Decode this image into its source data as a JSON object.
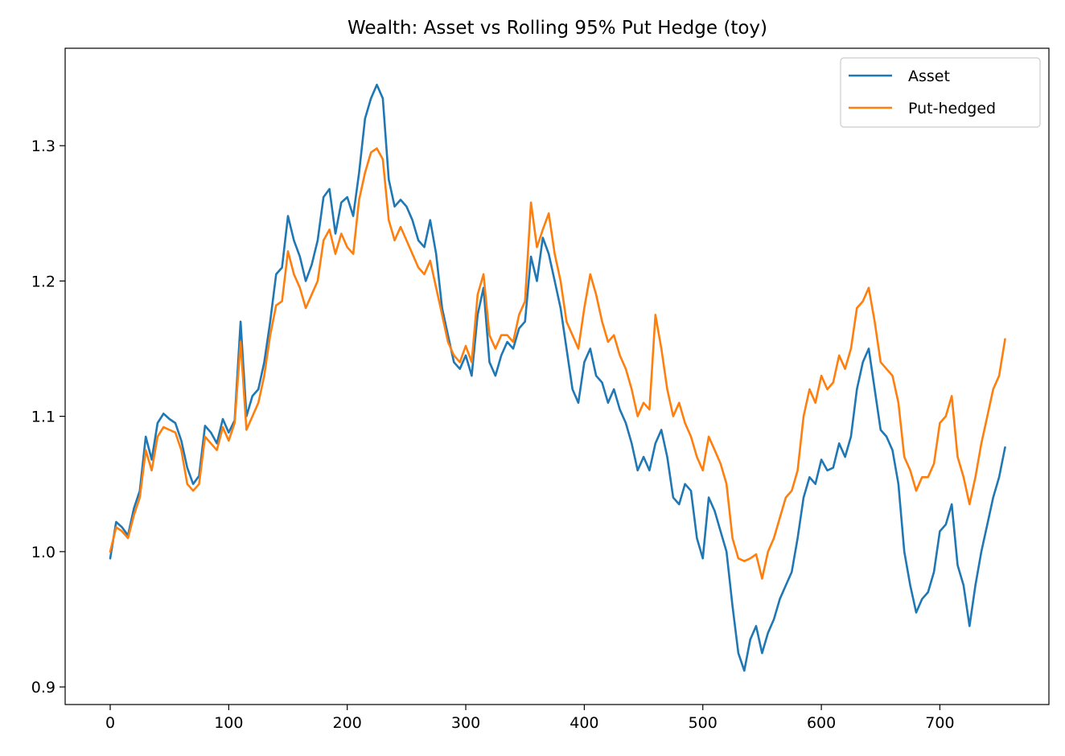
{
  "chart_data": {
    "type": "line",
    "title": "Wealth: Asset vs Rolling 95% Put Hedge (toy)",
    "xlabel": "",
    "ylabel": "",
    "xlim": [
      -38,
      792
    ],
    "ylim": [
      0.887,
      1.372
    ],
    "x_ticks": [
      0,
      100,
      200,
      300,
      400,
      500,
      600,
      700
    ],
    "x_tick_labels": [
      "0",
      "100",
      "200",
      "300",
      "400",
      "500",
      "600",
      "700"
    ],
    "y_ticks": [
      0.9,
      1.0,
      1.1,
      1.2,
      1.3
    ],
    "y_tick_labels": [
      "0.9",
      "1.0",
      "1.1",
      "1.2",
      "1.3"
    ],
    "grid": false,
    "legend_position": "top-right",
    "series": [
      {
        "name": "Asset",
        "color": "#1f77b4",
        "points": [
          [
            0,
            0.995
          ],
          [
            5,
            1.022
          ],
          [
            10,
            1.018
          ],
          [
            15,
            1.012
          ],
          [
            20,
            1.032
          ],
          [
            25,
            1.045
          ],
          [
            30,
            1.085
          ],
          [
            35,
            1.068
          ],
          [
            40,
            1.095
          ],
          [
            45,
            1.102
          ],
          [
            50,
            1.098
          ],
          [
            55,
            1.095
          ],
          [
            60,
            1.082
          ],
          [
            65,
            1.062
          ],
          [
            70,
            1.05
          ],
          [
            75,
            1.056
          ],
          [
            80,
            1.093
          ],
          [
            85,
            1.088
          ],
          [
            90,
            1.08
          ],
          [
            95,
            1.098
          ],
          [
            100,
            1.088
          ],
          [
            105,
            1.097
          ],
          [
            110,
            1.17
          ],
          [
            115,
            1.1
          ],
          [
            120,
            1.115
          ],
          [
            125,
            1.12
          ],
          [
            130,
            1.14
          ],
          [
            135,
            1.17
          ],
          [
            140,
            1.205
          ],
          [
            145,
            1.21
          ],
          [
            150,
            1.248
          ],
          [
            155,
            1.23
          ],
          [
            160,
            1.218
          ],
          [
            165,
            1.2
          ],
          [
            170,
            1.212
          ],
          [
            175,
            1.23
          ],
          [
            180,
            1.262
          ],
          [
            185,
            1.268
          ],
          [
            190,
            1.235
          ],
          [
            195,
            1.258
          ],
          [
            200,
            1.262
          ],
          [
            205,
            1.248
          ],
          [
            210,
            1.28
          ],
          [
            215,
            1.32
          ],
          [
            220,
            1.335
          ],
          [
            225,
            1.345
          ],
          [
            230,
            1.335
          ],
          [
            235,
            1.275
          ],
          [
            240,
            1.255
          ],
          [
            245,
            1.26
          ],
          [
            250,
            1.255
          ],
          [
            255,
            1.245
          ],
          [
            260,
            1.23
          ],
          [
            265,
            1.225
          ],
          [
            270,
            1.245
          ],
          [
            275,
            1.22
          ],
          [
            280,
            1.18
          ],
          [
            285,
            1.16
          ],
          [
            290,
            1.14
          ],
          [
            295,
            1.135
          ],
          [
            300,
            1.145
          ],
          [
            305,
            1.13
          ],
          [
            310,
            1.175
          ],
          [
            315,
            1.195
          ],
          [
            320,
            1.14
          ],
          [
            325,
            1.13
          ],
          [
            330,
            1.145
          ],
          [
            335,
            1.155
          ],
          [
            340,
            1.15
          ],
          [
            345,
            1.165
          ],
          [
            350,
            1.17
          ],
          [
            355,
            1.218
          ],
          [
            360,
            1.2
          ],
          [
            365,
            1.232
          ],
          [
            370,
            1.22
          ],
          [
            375,
            1.2
          ],
          [
            380,
            1.18
          ],
          [
            385,
            1.15
          ],
          [
            390,
            1.12
          ],
          [
            395,
            1.11
          ],
          [
            400,
            1.14
          ],
          [
            405,
            1.15
          ],
          [
            410,
            1.13
          ],
          [
            415,
            1.125
          ],
          [
            420,
            1.11
          ],
          [
            425,
            1.12
          ],
          [
            430,
            1.105
          ],
          [
            435,
            1.095
          ],
          [
            440,
            1.08
          ],
          [
            445,
            1.06
          ],
          [
            450,
            1.07
          ],
          [
            455,
            1.06
          ],
          [
            460,
            1.08
          ],
          [
            465,
            1.09
          ],
          [
            470,
            1.07
          ],
          [
            475,
            1.04
          ],
          [
            480,
            1.035
          ],
          [
            485,
            1.05
          ],
          [
            490,
            1.045
          ],
          [
            495,
            1.01
          ],
          [
            500,
            0.995
          ],
          [
            505,
            1.04
          ],
          [
            510,
            1.03
          ],
          [
            515,
            1.015
          ],
          [
            520,
            1.0
          ],
          [
            525,
            0.96
          ],
          [
            530,
            0.925
          ],
          [
            535,
            0.912
          ],
          [
            540,
            0.935
          ],
          [
            545,
            0.945
          ],
          [
            550,
            0.925
          ],
          [
            555,
            0.94
          ],
          [
            560,
            0.95
          ],
          [
            565,
            0.965
          ],
          [
            570,
            0.975
          ],
          [
            575,
            0.985
          ],
          [
            580,
            1.01
          ],
          [
            585,
            1.04
          ],
          [
            590,
            1.055
          ],
          [
            595,
            1.05
          ],
          [
            600,
            1.068
          ],
          [
            605,
            1.06
          ],
          [
            610,
            1.062
          ],
          [
            615,
            1.08
          ],
          [
            620,
            1.07
          ],
          [
            625,
            1.085
          ],
          [
            630,
            1.12
          ],
          [
            635,
            1.14
          ],
          [
            640,
            1.15
          ],
          [
            645,
            1.12
          ],
          [
            650,
            1.09
          ],
          [
            655,
            1.085
          ],
          [
            660,
            1.075
          ],
          [
            665,
            1.05
          ],
          [
            670,
            1.0
          ],
          [
            675,
            0.975
          ],
          [
            680,
            0.955
          ],
          [
            685,
            0.965
          ],
          [
            690,
            0.97
          ],
          [
            695,
            0.985
          ],
          [
            700,
            1.015
          ],
          [
            705,
            1.02
          ],
          [
            710,
            1.035
          ],
          [
            715,
            0.99
          ],
          [
            720,
            0.975
          ],
          [
            725,
            0.945
          ],
          [
            730,
            0.975
          ],
          [
            735,
            1.0
          ],
          [
            740,
            1.02
          ],
          [
            745,
            1.04
          ],
          [
            750,
            1.055
          ],
          [
            755,
            1.077
          ]
        ]
      },
      {
        "name": "Put-hedged",
        "color": "#ff7f0e",
        "points": [
          [
            0,
            1.0
          ],
          [
            5,
            1.018
          ],
          [
            10,
            1.015
          ],
          [
            15,
            1.01
          ],
          [
            20,
            1.027
          ],
          [
            25,
            1.04
          ],
          [
            30,
            1.075
          ],
          [
            35,
            1.06
          ],
          [
            40,
            1.085
          ],
          [
            45,
            1.092
          ],
          [
            50,
            1.09
          ],
          [
            55,
            1.088
          ],
          [
            60,
            1.075
          ],
          [
            65,
            1.05
          ],
          [
            70,
            1.045
          ],
          [
            75,
            1.05
          ],
          [
            80,
            1.085
          ],
          [
            85,
            1.08
          ],
          [
            90,
            1.075
          ],
          [
            95,
            1.092
          ],
          [
            100,
            1.082
          ],
          [
            105,
            1.095
          ],
          [
            110,
            1.155
          ],
          [
            115,
            1.09
          ],
          [
            120,
            1.1
          ],
          [
            125,
            1.11
          ],
          [
            130,
            1.13
          ],
          [
            135,
            1.16
          ],
          [
            140,
            1.182
          ],
          [
            145,
            1.185
          ],
          [
            150,
            1.222
          ],
          [
            155,
            1.205
          ],
          [
            160,
            1.195
          ],
          [
            165,
            1.18
          ],
          [
            170,
            1.19
          ],
          [
            175,
            1.2
          ],
          [
            180,
            1.23
          ],
          [
            185,
            1.238
          ],
          [
            190,
            1.22
          ],
          [
            195,
            1.235
          ],
          [
            200,
            1.225
          ],
          [
            205,
            1.22
          ],
          [
            210,
            1.26
          ],
          [
            215,
            1.28
          ],
          [
            220,
            1.295
          ],
          [
            225,
            1.298
          ],
          [
            230,
            1.29
          ],
          [
            235,
            1.245
          ],
          [
            240,
            1.23
          ],
          [
            245,
            1.24
          ],
          [
            250,
            1.23
          ],
          [
            255,
            1.22
          ],
          [
            260,
            1.21
          ],
          [
            265,
            1.205
          ],
          [
            270,
            1.215
          ],
          [
            275,
            1.195
          ],
          [
            280,
            1.175
          ],
          [
            285,
            1.155
          ],
          [
            290,
            1.145
          ],
          [
            295,
            1.14
          ],
          [
            300,
            1.152
          ],
          [
            305,
            1.14
          ],
          [
            310,
            1.19
          ],
          [
            315,
            1.205
          ],
          [
            320,
            1.16
          ],
          [
            325,
            1.15
          ],
          [
            330,
            1.16
          ],
          [
            335,
            1.16
          ],
          [
            340,
            1.155
          ],
          [
            345,
            1.175
          ],
          [
            350,
            1.185
          ],
          [
            355,
            1.258
          ],
          [
            360,
            1.225
          ],
          [
            365,
            1.238
          ],
          [
            370,
            1.25
          ],
          [
            375,
            1.22
          ],
          [
            380,
            1.2
          ],
          [
            385,
            1.17
          ],
          [
            390,
            1.16
          ],
          [
            395,
            1.15
          ],
          [
            400,
            1.18
          ],
          [
            405,
            1.205
          ],
          [
            410,
            1.19
          ],
          [
            415,
            1.17
          ],
          [
            420,
            1.155
          ],
          [
            425,
            1.16
          ],
          [
            430,
            1.145
          ],
          [
            435,
            1.135
          ],
          [
            440,
            1.12
          ],
          [
            445,
            1.1
          ],
          [
            450,
            1.11
          ],
          [
            455,
            1.105
          ],
          [
            460,
            1.175
          ],
          [
            465,
            1.15
          ],
          [
            470,
            1.12
          ],
          [
            475,
            1.1
          ],
          [
            480,
            1.11
          ],
          [
            485,
            1.095
          ],
          [
            490,
            1.085
          ],
          [
            495,
            1.07
          ],
          [
            500,
            1.06
          ],
          [
            505,
            1.085
          ],
          [
            510,
            1.075
          ],
          [
            515,
            1.065
          ],
          [
            520,
            1.05
          ],
          [
            525,
            1.01
          ],
          [
            530,
            0.995
          ],
          [
            535,
            0.993
          ],
          [
            540,
            0.995
          ],
          [
            545,
            0.998
          ],
          [
            550,
            0.98
          ],
          [
            555,
            1.0
          ],
          [
            560,
            1.01
          ],
          [
            565,
            1.025
          ],
          [
            570,
            1.04
          ],
          [
            575,
            1.045
          ],
          [
            580,
            1.06
          ],
          [
            585,
            1.1
          ],
          [
            590,
            1.12
          ],
          [
            595,
            1.11
          ],
          [
            600,
            1.13
          ],
          [
            605,
            1.12
          ],
          [
            610,
            1.125
          ],
          [
            615,
            1.145
          ],
          [
            620,
            1.135
          ],
          [
            625,
            1.15
          ],
          [
            630,
            1.18
          ],
          [
            635,
            1.185
          ],
          [
            640,
            1.195
          ],
          [
            645,
            1.17
          ],
          [
            650,
            1.14
          ],
          [
            655,
            1.135
          ],
          [
            660,
            1.13
          ],
          [
            665,
            1.11
          ],
          [
            670,
            1.07
          ],
          [
            675,
            1.06
          ],
          [
            680,
            1.045
          ],
          [
            685,
            1.055
          ],
          [
            690,
            1.055
          ],
          [
            695,
            1.065
          ],
          [
            700,
            1.095
          ],
          [
            705,
            1.1
          ],
          [
            710,
            1.115
          ],
          [
            715,
            1.07
          ],
          [
            720,
            1.055
          ],
          [
            725,
            1.035
          ],
          [
            730,
            1.055
          ],
          [
            735,
            1.08
          ],
          [
            740,
            1.1
          ],
          [
            745,
            1.12
          ],
          [
            750,
            1.13
          ],
          [
            755,
            1.157
          ]
        ]
      }
    ]
  }
}
